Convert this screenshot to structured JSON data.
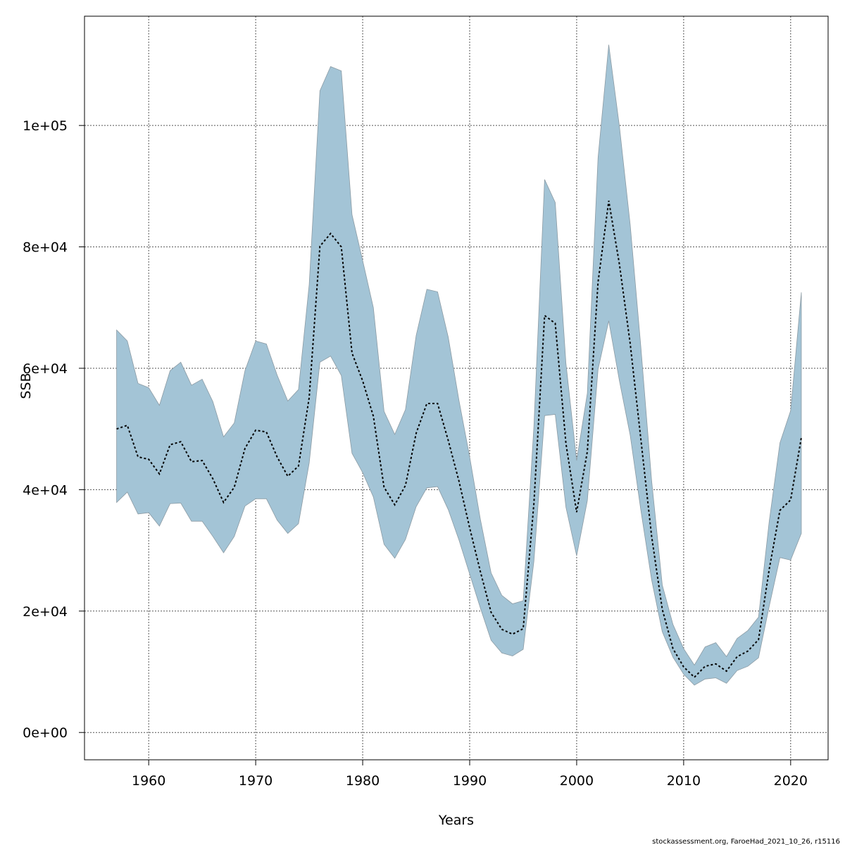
{
  "chart_data": {
    "type": "area",
    "xlabel": "Years",
    "ylabel": "SSB",
    "xlim": [
      1954,
      2023.5
    ],
    "ylim": [
      -4500,
      118000
    ],
    "x_ticks": [
      1960,
      1970,
      1980,
      1990,
      2000,
      2010,
      2020
    ],
    "x_tick_labels": [
      "1960",
      "1970",
      "1980",
      "1990",
      "2000",
      "2010",
      "2020"
    ],
    "y_ticks": [
      0,
      20000,
      40000,
      60000,
      80000,
      100000
    ],
    "y_tick_labels": [
      "0e+00",
      "2e+04",
      "4e+04",
      "6e+04",
      "8e+04",
      "1e+05"
    ],
    "grid": true,
    "credit": "stockassessment.org, FaroeHad_2021_10_26, r15116",
    "colors": {
      "band": "#a3c4d6",
      "band_edge": "#8c9ba4",
      "line": "#000000"
    },
    "series": [
      {
        "style": "dotted-line",
        "years": [
          1957,
          1958,
          1959,
          1960,
          1961,
          1962,
          1963,
          1964,
          1965,
          1966,
          1967,
          1968,
          1969,
          1970,
          1971,
          1972,
          1973,
          1974,
          1975,
          1976,
          1977,
          1978,
          1979,
          1980,
          1981,
          1982,
          1983,
          1984,
          1985,
          1986,
          1987,
          1988,
          1989,
          1990,
          1991,
          1992,
          1993,
          1994,
          1995,
          1996,
          1997,
          1998,
          1999,
          2000,
          2001,
          2002,
          2003,
          2004,
          2005,
          2006,
          2007,
          2008,
          2009,
          2010,
          2011,
          2012,
          2013,
          2014,
          2015,
          2016,
          2017,
          2018,
          2019,
          2020,
          2021
        ],
        "ssb": [
          50000,
          50600,
          45400,
          45000,
          42600,
          47400,
          47900,
          44600,
          44800,
          41800,
          37900,
          40400,
          46800,
          49800,
          49500,
          45400,
          42200,
          43900,
          55200,
          80100,
          82200,
          80000,
          62500,
          57900,
          52100,
          40400,
          37500,
          40700,
          49300,
          54200,
          54200,
          48100,
          41400,
          33700,
          26500,
          19800,
          17000,
          16200,
          17100,
          37700,
          68700,
          67400,
          47600,
          36300,
          46300,
          74200,
          87600,
          77100,
          64100,
          48300,
          32400,
          20300,
          13800,
          10800,
          9100,
          10900,
          11300,
          10100,
          12500,
          13400,
          15300,
          26900,
          36600,
          38300,
          48600
        ],
        "ssb_low": [
          37900,
          39600,
          36000,
          36200,
          34000,
          37700,
          37800,
          34800,
          34800,
          32300,
          29600,
          32300,
          37300,
          38500,
          38500,
          35000,
          32800,
          34400,
          44400,
          61000,
          62000,
          58800,
          46000,
          42800,
          38800,
          31000,
          28700,
          31800,
          37200,
          40300,
          40500,
          36700,
          31700,
          26100,
          20500,
          15200,
          13100,
          12600,
          13700,
          28200,
          52200,
          52400,
          37100,
          29100,
          38200,
          59800,
          67800,
          57900,
          49000,
          36600,
          25200,
          16600,
          12400,
          9600,
          7800,
          8800,
          9000,
          8100,
          10200,
          10900,
          12300,
          20800,
          28800,
          28400,
          32800
        ],
        "ssb_high": [
          66300,
          64500,
          57500,
          56800,
          53900,
          59600,
          61000,
          57200,
          58200,
          54500,
          48700,
          51000,
          59600,
          64500,
          64000,
          58900,
          54600,
          56500,
          73800,
          105700,
          109700,
          109000,
          85300,
          77700,
          70000,
          52900,
          49100,
          53200,
          65400,
          73000,
          72600,
          65100,
          54700,
          45400,
          35100,
          26300,
          22600,
          21200,
          21700,
          50400,
          91100,
          87300,
          60800,
          44800,
          55900,
          94700,
          113300,
          99800,
          83700,
          63500,
          41600,
          24300,
          17800,
          13800,
          11100,
          14100,
          14800,
          12500,
          15500,
          16800,
          19000,
          34800,
          47700,
          53000,
          72500
        ]
      }
    ]
  }
}
